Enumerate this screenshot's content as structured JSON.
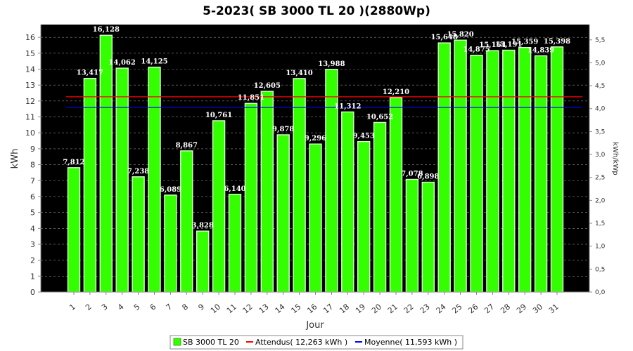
{
  "chart_data": {
    "type": "bar",
    "title": "5-2023( SB 3000 TL 20 )(2880Wp)",
    "xlabel": "Jour",
    "ylabel": "kWh",
    "y2label": "kWh/kWp",
    "ylim": [
      0,
      16.8
    ],
    "y2lim": [
      0,
      5.8333
    ],
    "grid": true,
    "legend_position": "bottom",
    "categories": [
      "1",
      "2",
      "3",
      "4",
      "5",
      "6",
      "7",
      "8",
      "9",
      "10",
      "11",
      "12",
      "13",
      "14",
      "15",
      "16",
      "17",
      "18",
      "19",
      "20",
      "21",
      "22",
      "23",
      "24",
      "25",
      "26",
      "27",
      "28",
      "29",
      "30",
      "31"
    ],
    "series": [
      {
        "name": "SB 3000 TL 20",
        "color": "#33ff00",
        "values": [
          7.812,
          13.417,
          16.128,
          14.062,
          7.238,
          14.125,
          6.089,
          8.867,
          3.828,
          10.761,
          6.14,
          11.851,
          12.605,
          9.878,
          13.41,
          9.296,
          13.988,
          11.312,
          9.453,
          10.652,
          12.21,
          7.078,
          6.898,
          15.648,
          15.82,
          14.875,
          15.164,
          15.191,
          15.359,
          14.839,
          15.398
        ],
        "labels": [
          "7,812",
          "13,417",
          "16,128",
          "14,062",
          "7,238",
          "14,125",
          "6,089",
          "8,867",
          "3,828",
          "10,761",
          "6,140",
          "11,851",
          "12,605",
          "9,878",
          "13,410",
          "9,296",
          "13,988",
          "11,312",
          "9,453",
          "10,652",
          "12,210",
          "7,078",
          "6,898",
          "15,648",
          "15,820",
          "14,875",
          "15,164",
          "15,191",
          "15,359",
          "14,839",
          "15,398"
        ]
      }
    ],
    "reference_lines": [
      {
        "name": "Attendus( 12,263 kWh )",
        "value": 12.263,
        "color": "#ff0000"
      },
      {
        "name": "Moyenne( 11,593 kWh )",
        "value": 11.593,
        "color": "#0000ff"
      }
    ],
    "y_ticks": [
      "0",
      "1",
      "2",
      "3",
      "4",
      "5",
      "6",
      "7",
      "8",
      "9",
      "10",
      "11",
      "12",
      "13",
      "14",
      "15",
      "16"
    ],
    "y2_ticks": [
      "0,0",
      "0,5",
      "1,0",
      "1,5",
      "2,0",
      "2,5",
      "3,0",
      "3,5",
      "4,0",
      "4,5",
      "5,0",
      "5,5"
    ]
  }
}
